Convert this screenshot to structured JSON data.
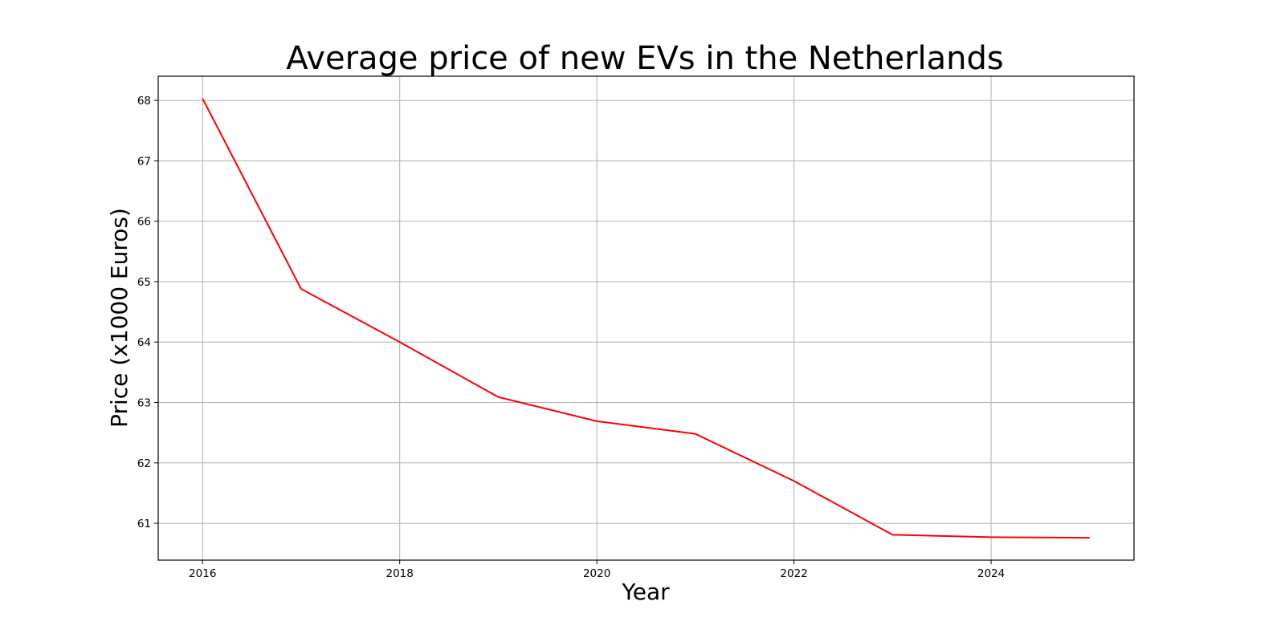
{
  "chart_data": {
    "type": "line",
    "title": "Average price of new EVs in the Netherlands",
    "xlabel": "Year",
    "ylabel": "Price (x1000 Euros)",
    "x": [
      2016,
      2017,
      2018,
      2019,
      2020,
      2021,
      2022,
      2023,
      2024,
      2025
    ],
    "series": [
      {
        "values": [
          68.03,
          64.88,
          64.0,
          63.09,
          62.69,
          62.48,
          61.7,
          60.81,
          60.77,
          60.76
        ],
        "color": "#ff0000"
      }
    ],
    "xlim": [
      2015.55,
      2025.45
    ],
    "ylim": [
      60.39,
      68.4
    ],
    "xticks": [
      2016,
      2018,
      2020,
      2022,
      2024
    ],
    "yticks": [
      61,
      62,
      63,
      64,
      65,
      66,
      67,
      68
    ],
    "grid": true,
    "legend": "none"
  }
}
